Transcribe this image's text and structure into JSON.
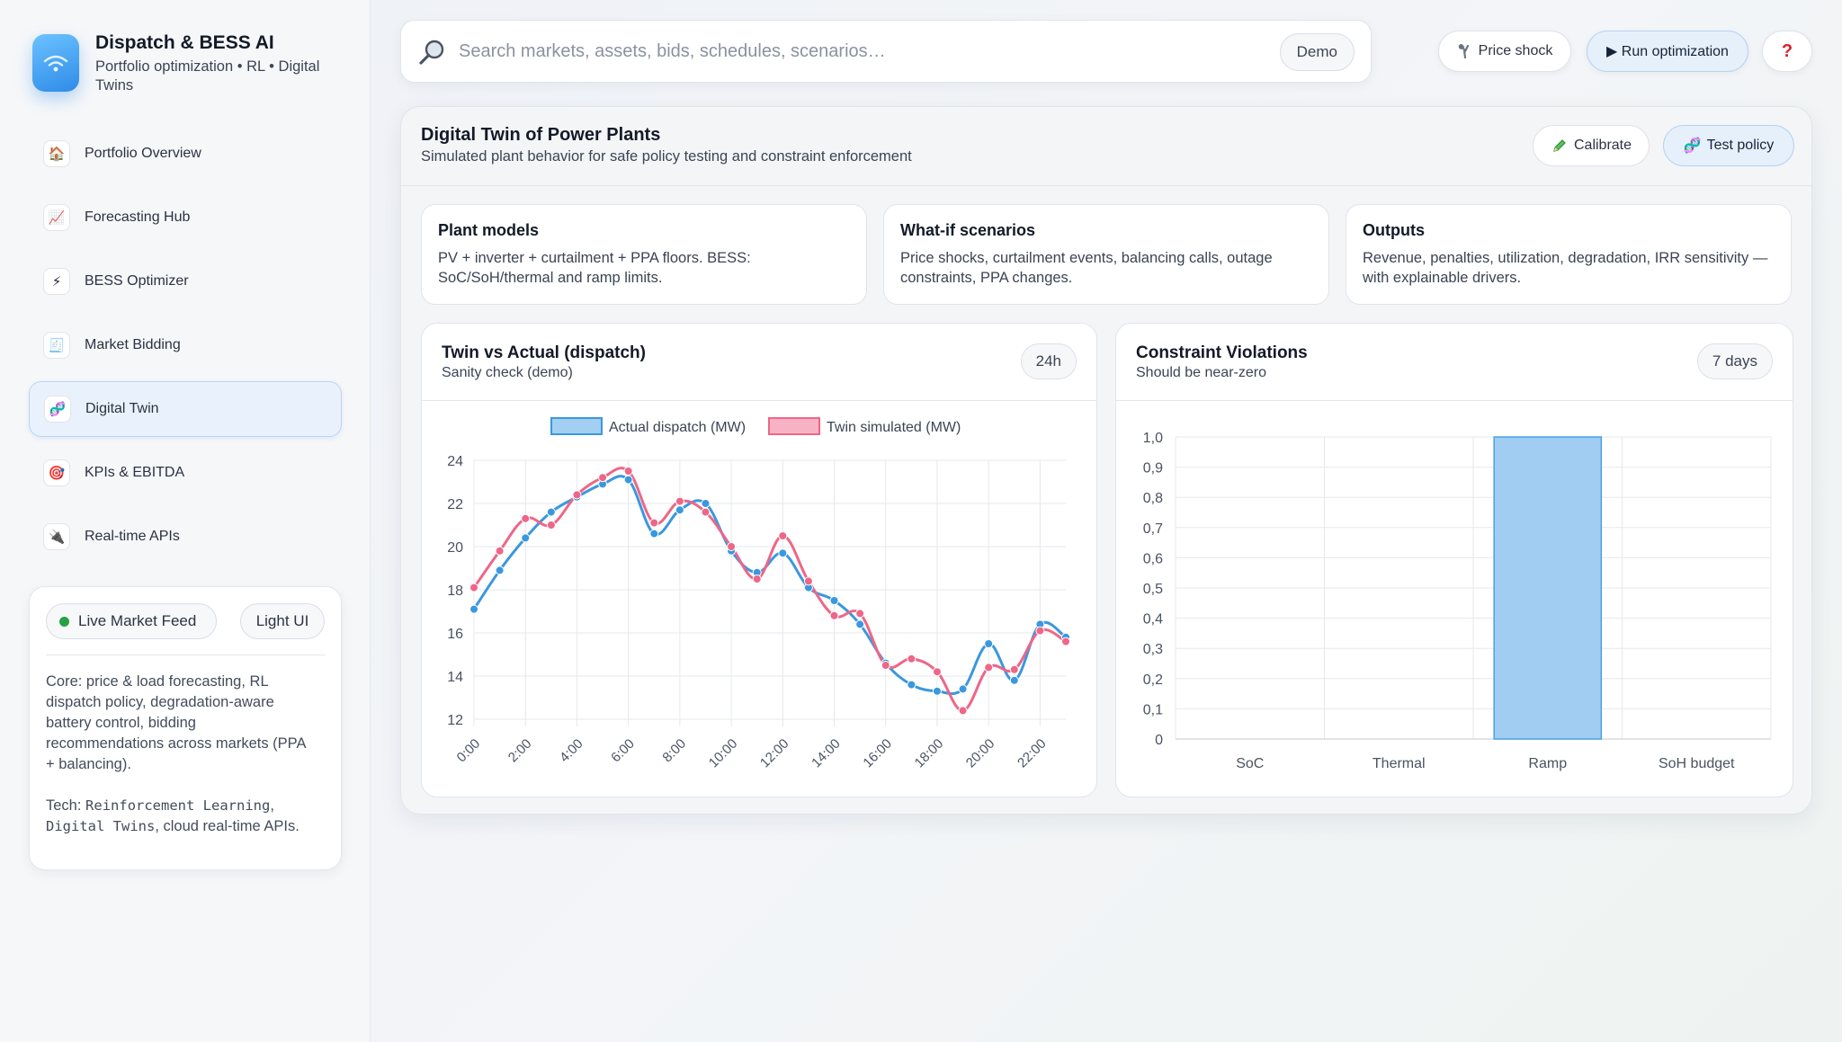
{
  "brand": {
    "title": "Dispatch & BESS AI",
    "subtitle": "Portfolio optimization • RL • Digital Twins"
  },
  "nav": {
    "items": [
      {
        "label": "Portfolio Overview",
        "icon": "🏠"
      },
      {
        "label": "Forecasting Hub",
        "icon": "📈"
      },
      {
        "label": "BESS Optimizer",
        "icon": "⚡"
      },
      {
        "label": "Market Bidding",
        "icon": "🧾"
      },
      {
        "label": "Digital Twin",
        "icon": "🧬"
      },
      {
        "label": "KPIs & EBITDA",
        "icon": "🎯"
      },
      {
        "label": "Real-time APIs",
        "icon": "🔌"
      }
    ],
    "active_index": 4
  },
  "side_card": {
    "live_feed": "Live Market Feed",
    "theme": "Light UI",
    "core_text": "Core: price & load forecasting, RL dispatch policy, degradation-aware battery control, bidding recommendations across markets (PPA + balancing).",
    "tech_prefix": "Tech: ",
    "tech_rl": "Reinforcement Learning",
    "tech_sep": ", ",
    "tech_dt": "Digital Twins",
    "tech_suffix": ", cloud real-time APIs."
  },
  "search": {
    "placeholder": "Search markets, assets, bids, schedules, scenarios…",
    "badge": "Demo"
  },
  "toolbar": {
    "price_shock": "Price shock",
    "run_optimization": "▶ Run optimization",
    "help": "?"
  },
  "panel": {
    "title": "Digital Twin of Power Plants",
    "subtitle": "Simulated plant behavior for safe policy testing and constraint enforcement",
    "calibrate": "Calibrate",
    "test_policy": "Test policy"
  },
  "cards": [
    {
      "title": "Plant models",
      "text": "PV + inverter + curtailment + PPA floors. BESS: SoC/SoH/thermal and ramp limits."
    },
    {
      "title": "What-if scenarios",
      "text": "Price shocks, curtailment events, balancing calls, outage constraints, PPA changes."
    },
    {
      "title": "Outputs",
      "text": "Revenue, penalties, utilization, degradation, IRR sensitivity — with explainable drivers."
    }
  ],
  "twin_chart": {
    "title": "Twin vs Actual (dispatch)",
    "subtitle": "Sanity check (demo)",
    "range": "24h"
  },
  "violations_chart": {
    "title": "Constraint Violations",
    "subtitle": "Should be near-zero",
    "range": "7 days"
  },
  "colors": {
    "actual": "#3a98de",
    "actual_fill": "#a3cff3",
    "twin": "#ee6688",
    "twin_fill": "#f7b3c4",
    "bar": "#a2cdf3",
    "bar_border": "#4aa0e2",
    "accent": "#2f8be8"
  },
  "chart_data": [
    {
      "type": "line",
      "x": [
        "0:00",
        "1:00",
        "2:00",
        "3:00",
        "4:00",
        "5:00",
        "6:00",
        "7:00",
        "8:00",
        "9:00",
        "10:00",
        "11:00",
        "12:00",
        "13:00",
        "14:00",
        "15:00",
        "16:00",
        "17:00",
        "18:00",
        "19:00",
        "20:00",
        "21:00",
        "22:00",
        "23:00"
      ],
      "x_tick_labels": [
        "0:00",
        "2:00",
        "4:00",
        "6:00",
        "8:00",
        "10:00",
        "12:00",
        "14:00",
        "16:00",
        "18:00",
        "20:00",
        "22:00"
      ],
      "series": [
        {
          "name": "Actual dispatch (MW)",
          "values": [
            17.1,
            18.9,
            20.4,
            21.6,
            22.3,
            22.9,
            23.1,
            20.6,
            21.7,
            22.0,
            19.8,
            18.8,
            19.7,
            18.1,
            17.5,
            16.4,
            14.6,
            13.6,
            13.3,
            13.4,
            15.5,
            13.8,
            16.4,
            15.8
          ]
        },
        {
          "name": "Twin simulated (MW)",
          "values": [
            18.1,
            19.8,
            21.3,
            21.0,
            22.4,
            23.2,
            23.5,
            21.1,
            22.1,
            21.6,
            20.0,
            18.5,
            20.5,
            18.4,
            16.8,
            16.9,
            14.5,
            14.8,
            14.2,
            12.4,
            14.4,
            14.3,
            16.1,
            15.6
          ]
        }
      ],
      "ylim": [
        12,
        24
      ],
      "y_ticks": [
        12,
        14,
        16,
        18,
        20,
        22,
        24
      ],
      "grid": true,
      "legend": "top-center"
    },
    {
      "type": "bar",
      "categories": [
        "SoC",
        "Thermal",
        "Ramp",
        "SoH budget"
      ],
      "values": [
        0,
        0,
        1,
        0
      ],
      "ylim": [
        0,
        1
      ],
      "y_tick_labels": [
        "0",
        "0,1",
        "0,2",
        "0,3",
        "0,4",
        "0,5",
        "0,6",
        "0,7",
        "0,8",
        "0,9",
        "1,0"
      ],
      "grid": true
    }
  ]
}
